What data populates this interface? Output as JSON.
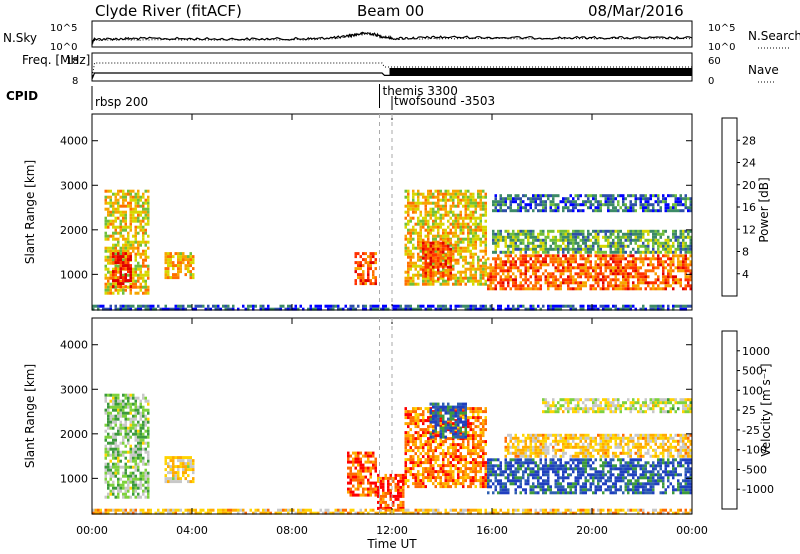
{
  "header": {
    "radar": "Clyde River (fitACF)",
    "beam": "Beam 00",
    "date": "08/Mar/2016"
  },
  "colors": {
    "power_scale": [
      "#0000ff",
      "#2e4fa8",
      "#3c8a66",
      "#6fbf3a",
      "#d7d700",
      "#f7a500",
      "#ff6f00",
      "#ff3000",
      "#e00000"
    ],
    "velocity_scale": [
      "#ff0000",
      "#ff6a00",
      "#ffaa00",
      "#ffd400",
      "#c8c8c8",
      "#7ed23c",
      "#3c9a3c",
      "#2e5fb0",
      "#1f3fbf"
    ]
  },
  "chart_data": [
    {
      "type": "line",
      "panel": "nsky-nsearch",
      "left_label": "N.Sky",
      "right_label": "N.Search",
      "left_ticks": [
        "10^5",
        "10^0"
      ],
      "right_ticks": [
        "10^5",
        "10^0"
      ],
      "yscale": "log",
      "ylim": [
        1,
        100000
      ],
      "x": [
        0,
        0.1,
        1,
        2,
        4,
        6,
        8,
        9,
        10,
        10.5,
        11,
        11.5,
        12,
        13,
        14,
        16,
        18,
        20,
        22,
        24
      ],
      "series": [
        {
          "name": "N.Sky",
          "style": "solid",
          "values": [
            1,
            20,
            25,
            30,
            25,
            22,
            25,
            28,
            60,
            200,
            500,
            100,
            30,
            40,
            60,
            50,
            40,
            45,
            40,
            40
          ]
        },
        {
          "name": "N.Search",
          "style": "dotted",
          "values": [
            1,
            12,
            15,
            15,
            15,
            14,
            15,
            18,
            40,
            150,
            300,
            80,
            20,
            25,
            30,
            30,
            28,
            28,
            28,
            28
          ]
        }
      ]
    },
    {
      "type": "line",
      "panel": "freq-nave",
      "left_label": "Freq. [MHz]",
      "right_label": "Nave",
      "left_ticks": [
        "18",
        "8"
      ],
      "right_ticks": [
        "60",
        "0"
      ],
      "x": [
        0,
        0.1,
        11.6,
        11.7,
        24
      ],
      "series": [
        {
          "name": "Freq.",
          "style": "solid",
          "values": [
            8,
            10.5,
            10.5,
            9.5,
            9.5
          ]
        },
        {
          "name": "Nave",
          "style": "dotted",
          "values": [
            0,
            40,
            40,
            30,
            30
          ]
        }
      ]
    },
    {
      "type": "table",
      "panel": "cpid",
      "label": "CPID",
      "entries": [
        {
          "start_hour": 0,
          "text": "rbsp 200"
        },
        {
          "start_hour": 11.5,
          "text": "themis 3300"
        },
        {
          "start_hour": 12.0,
          "text": "twofsound -3503"
        }
      ]
    },
    {
      "type": "heatmap",
      "panel": "power",
      "ylabel": "Slant Range [km]",
      "yticks": [
        "1000",
        "2000",
        "3000",
        "4000"
      ],
      "ylim": [
        200,
        4600
      ],
      "xlim": [
        0,
        24
      ],
      "colorbar_label": "Power [dB]",
      "colorbar_ticks": [
        "4",
        "8",
        "12",
        "16",
        "20",
        "24",
        "28"
      ],
      "colorbar_range": [
        0,
        32
      ],
      "regions": [
        {
          "t0": 0.5,
          "t1": 2.3,
          "r0": 600,
          "r1": 2900,
          "level": 0.55
        },
        {
          "t0": 0.8,
          "t1": 1.6,
          "r0": 750,
          "r1": 1500,
          "level": 0.9
        },
        {
          "t0": 2.9,
          "t1": 4.1,
          "r0": 900,
          "r1": 1500,
          "level": 0.6
        },
        {
          "t0": 10.5,
          "t1": 11.4,
          "r0": 800,
          "r1": 1500,
          "level": 0.75
        },
        {
          "t0": 12.5,
          "t1": 15.8,
          "r0": 800,
          "r1": 2900,
          "level": 0.55
        },
        {
          "t0": 13.2,
          "t1": 14.3,
          "r0": 900,
          "r1": 1800,
          "level": 0.8
        },
        {
          "t0": 15.8,
          "t1": 24.0,
          "r0": 650,
          "r1": 1450,
          "level": 0.75
        },
        {
          "t0": 16.0,
          "t1": 24.0,
          "r0": 1500,
          "r1": 2000,
          "level": 0.35
        },
        {
          "t0": 16.0,
          "t1": 24.0,
          "r0": 2400,
          "r1": 2800,
          "level": 0.2
        },
        {
          "t0": 0.0,
          "t1": 24.0,
          "r0": 200,
          "r1": 320,
          "level": 0.15
        }
      ]
    },
    {
      "type": "heatmap",
      "panel": "velocity",
      "ylabel": "Slant Range [km]",
      "yticks": [
        "1000",
        "2000",
        "3000",
        "4000"
      ],
      "ylim": [
        200,
        4600
      ],
      "xlim": [
        0,
        24
      ],
      "xticks": [
        "00:00",
        "04:00",
        "08:00",
        "12:00",
        "16:00",
        "20:00",
        "00:00"
      ],
      "xlabel": "Time UT",
      "colorbar_label": "Velocity [m s⁻¹]",
      "colorbar_ticks": [
        "-1000",
        "-500",
        "-100",
        "-25",
        "25",
        "100",
        "500",
        "1000"
      ],
      "regions": [
        {
          "t0": 0.5,
          "t1": 2.3,
          "r0": 600,
          "r1": 2900,
          "vel": 0.6
        },
        {
          "t0": 2.9,
          "t1": 4.1,
          "r0": 900,
          "r1": 1500,
          "vel": 0.4
        },
        {
          "t0": 10.2,
          "t1": 11.4,
          "r0": 600,
          "r1": 1600,
          "vel": 0.15
        },
        {
          "t0": 11.4,
          "t1": 12.5,
          "r0": 300,
          "r1": 1100,
          "vel": 0.12
        },
        {
          "t0": 12.5,
          "t1": 15.8,
          "r0": 800,
          "r1": 2600,
          "vel": 0.2
        },
        {
          "t0": 13.5,
          "t1": 15.0,
          "r0": 1900,
          "r1": 2700,
          "vel": 0.85
        },
        {
          "t0": 15.8,
          "t1": 24.0,
          "r0": 650,
          "r1": 1450,
          "vel": 0.88
        },
        {
          "t0": 16.5,
          "t1": 24.0,
          "r0": 1500,
          "r1": 2000,
          "vel": 0.38
        },
        {
          "t0": 18.0,
          "t1": 24.0,
          "r0": 2500,
          "r1": 2800,
          "vel": 0.5
        },
        {
          "t0": 0.0,
          "t1": 24.0,
          "r0": 200,
          "r1": 320,
          "vel": 0.35
        }
      ]
    }
  ]
}
